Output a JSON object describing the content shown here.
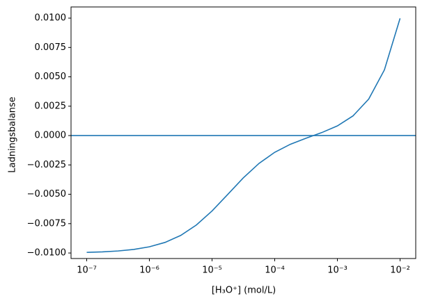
{
  "chart_data": {
    "type": "line",
    "xlabel": "[H₃O⁺] (mol/L)",
    "ylabel": "Ladningsbalanse",
    "xscale": "log",
    "x": [
      1e-07,
      1.778e-07,
      3.162e-07,
      5.623e-07,
      1e-06,
      1.778e-06,
      3.162e-06,
      5.623e-06,
      1e-05,
      1.778e-05,
      3.162e-05,
      5.623e-05,
      0.0001,
      0.0001778,
      0.0003162,
      0.0005623,
      0.001,
      0.001778,
      0.003162,
      0.005623,
      0.01
    ],
    "series": [
      {
        "color": "#1f77b4",
        "values": [
          -0.009945,
          -0.009902,
          -0.009827,
          -0.009697,
          -0.009473,
          -0.009099,
          -0.008503,
          -0.007614,
          -0.006419,
          -0.005013,
          -0.003596,
          -0.002369,
          -0.001425,
          -0.000741,
          -0.000223,
          0.000252,
          0.000823,
          0.001678,
          0.003106,
          0.005591,
          0.009982
        ]
      }
    ],
    "axhline": {
      "value": 0,
      "color": "#1f77b4"
    },
    "xlim": [
      5.623e-08,
      0.01778
    ],
    "ylim": [
      -0.01047,
      0.01095
    ],
    "xticks": [
      {
        "value": 1e-07,
        "label": "10⁻⁷"
      },
      {
        "value": 1e-06,
        "label": "10⁻⁶"
      },
      {
        "value": 1e-05,
        "label": "10⁻⁵"
      },
      {
        "value": 0.0001,
        "label": "10⁻⁴"
      },
      {
        "value": 0.001,
        "label": "10⁻³"
      },
      {
        "value": 0.01,
        "label": "10⁻²"
      }
    ],
    "yticks": [
      {
        "value": -0.01,
        "label": "−0.0100"
      },
      {
        "value": -0.0075,
        "label": "−0.0075"
      },
      {
        "value": -0.005,
        "label": "−0.0050"
      },
      {
        "value": -0.0025,
        "label": "−0.0025"
      },
      {
        "value": 0,
        "label": "0.0000"
      },
      {
        "value": 0.0025,
        "label": "0.0025"
      },
      {
        "value": 0.005,
        "label": "0.0050"
      },
      {
        "value": 0.0075,
        "label": "0.0075"
      },
      {
        "value": 0.01,
        "label": "0.0100"
      }
    ]
  }
}
